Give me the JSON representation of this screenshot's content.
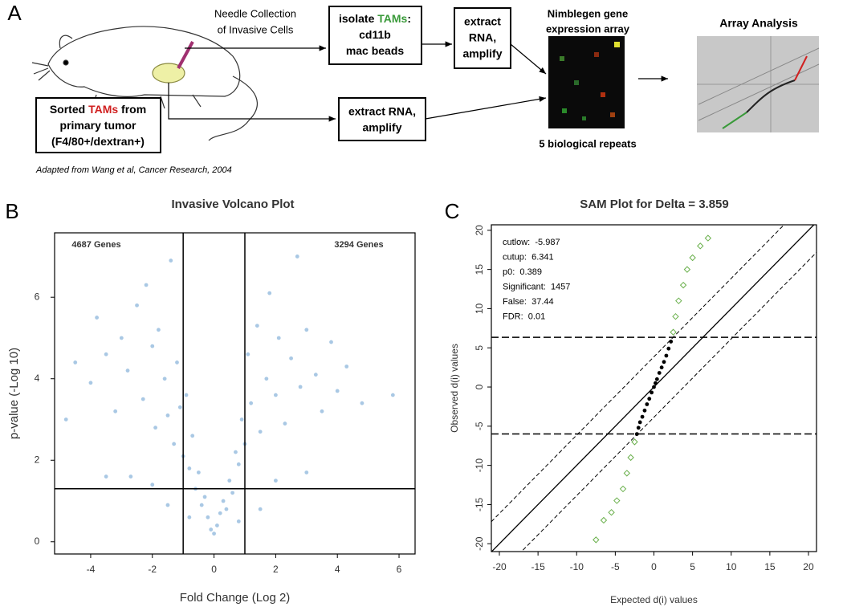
{
  "panel_a": {
    "label": "A",
    "needle": [
      "Needle Collection",
      "of Invasive Cells"
    ],
    "sorted_box": [
      [
        "Sorted ",
        "TAMs",
        " from"
      ],
      [
        "primary tumor"
      ],
      [
        "(F4/80+/dextran+)"
      ]
    ],
    "isolate_box": [
      [
        "isolate ",
        "TAMs",
        ":"
      ],
      [
        "cd11b"
      ],
      [
        "mac beads"
      ]
    ],
    "extract_box_top": [
      "extract",
      "RNA,",
      "amplify"
    ],
    "extract_box_bottom": [
      "extract RNA,",
      "amplify"
    ],
    "array_title": [
      "Nimblegen gene",
      "expression array"
    ],
    "array_caption": "5 biological repeats",
    "analysis_title": "Array Analysis",
    "credit": "Adapted from Wang et al, Cancer Research, 2004"
  },
  "chart_data": [
    {
      "type": "scatter",
      "label": "B",
      "title": "Invasive Volcano Plot",
      "x_label": "Fold Change (Log 2)",
      "y_label": "p-value (-Log 10)",
      "xlim": [
        -5.17,
        6.52
      ],
      "ylim": [
        -0.3,
        7.58
      ],
      "xticks": [
        -4,
        -2,
        0,
        2,
        4,
        6
      ],
      "yticks": [
        0,
        2,
        4,
        6
      ],
      "vlines": [
        -1,
        1
      ],
      "hlines": [
        1.3
      ],
      "annotations": [
        "4687 Genes",
        "3294 Genes"
      ],
      "series": [
        {
          "color": "#a9c8e4",
          "marker": "circle",
          "x": [
            -4.8,
            -4.5,
            -4,
            -3.8,
            -3.5,
            -3.5,
            -3.2,
            -3,
            -2.8,
            -2.7,
            -2.5,
            -2.3,
            -2.2,
            -2,
            -2,
            -1.9,
            -1.8,
            -1.6,
            -1.5,
            -1.5,
            -1.4,
            -1.3,
            -1.2,
            -1.1,
            -1,
            -0.9,
            -0.8,
            -0.8,
            -0.7,
            -0.6,
            -0.5,
            -0.4,
            -0.3,
            -0.2,
            -0.1,
            0,
            0.1,
            0.2,
            0.3,
            0.4,
            0.5,
            0.6,
            0.7,
            0.8,
            0.8,
            0.9,
            1,
            1.1,
            1.2,
            1.4,
            1.5,
            1.5,
            1.7,
            1.8,
            2,
            2,
            2.1,
            2.3,
            2.5,
            2.7,
            2.8,
            3,
            3,
            3.3,
            3.5,
            3.8,
            4,
            4.3,
            4.8,
            5.8
          ],
          "values": [
            3,
            4.4,
            3.9,
            5.5,
            4.6,
            1.6,
            3.2,
            5,
            4.2,
            1.6,
            5.8,
            3.5,
            6.3,
            4.8,
            1.4,
            2.8,
            5.2,
            4,
            3.1,
            0.9,
            6.9,
            2.4,
            4.4,
            3.3,
            2.1,
            3.6,
            1.8,
            0.6,
            2.6,
            1.3,
            1.7,
            0.9,
            1.1,
            0.6,
            0.3,
            0.2,
            0.4,
            0.7,
            1,
            0.8,
            1.5,
            1.2,
            2.2,
            1.9,
            0.5,
            3,
            2.4,
            4.6,
            3.4,
            5.3,
            2.7,
            0.8,
            4,
            6.1,
            3.6,
            1.5,
            5,
            2.9,
            4.5,
            7,
            3.8,
            5.2,
            1.7,
            4.1,
            3.2,
            4.9,
            3.7,
            4.3,
            3.4,
            3.6
          ]
        }
      ]
    },
    {
      "type": "scatter",
      "label": "C",
      "title": "SAM Plot for Delta =",
      "delta": 3.859,
      "x_label": "Expected d(i) values",
      "y_label": "Observed d(i) values",
      "xlim": [
        -21.04,
        21.04
      ],
      "ylim": [
        -21,
        20.7
      ],
      "xticks": [
        -20,
        -15,
        -10,
        -5,
        0,
        5,
        10,
        15,
        20
      ],
      "yticks": [
        -20,
        -15,
        -10,
        -5,
        0,
        5,
        10,
        15,
        20
      ],
      "stats": [
        {
          "label": "cutlow:",
          "value": -5.987
        },
        {
          "label": "cutup:",
          "value": 6.341
        },
        {
          "label": "p0:",
          "value": 0.389
        },
        {
          "label": "Significant:",
          "value": 1457
        },
        {
          "label": "False:",
          "value": 37.44
        },
        {
          "label": "FDR:",
          "value": 0.01
        }
      ],
      "series": [
        {
          "color": "#000000",
          "marker": "circle",
          "x": [
            -2.2,
            -2,
            -1.8,
            -1.5,
            -1.2,
            -0.9,
            -0.6,
            -0.3,
            0,
            0.2,
            0.4,
            0.7,
            1,
            1.3,
            1.6,
            1.9,
            2.2
          ],
          "values": [
            -6,
            -5.2,
            -4.5,
            -3.8,
            -3,
            -2.2,
            -1.5,
            -0.7,
            0,
            0.5,
            1,
            1.8,
            2.5,
            3.2,
            4,
            4.9,
            5.8
          ]
        },
        {
          "color": "#6ab04c",
          "marker": "diamond",
          "x": [
            -7.5,
            -6.5,
            -5.5,
            -4.8,
            -4,
            -3.5,
            -3,
            -2.5,
            2.5,
            2.8,
            3.2,
            3.8,
            4.3,
            5,
            6,
            7
          ],
          "values": [
            -19.5,
            -17,
            -16,
            -14.5,
            -13,
            -11,
            -9,
            -7,
            7,
            9,
            11,
            13,
            15,
            16.5,
            18,
            19
          ]
        }
      ]
    }
  ]
}
